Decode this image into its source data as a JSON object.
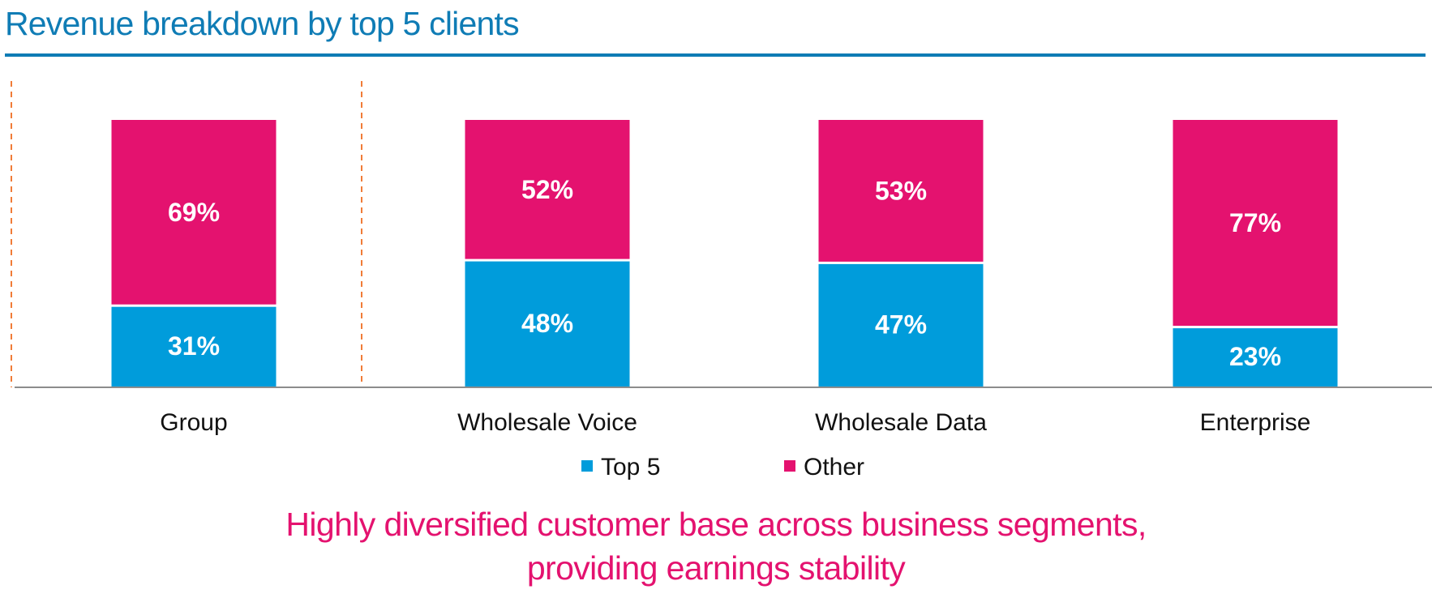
{
  "title": "Revenue breakdown by top 5 clients",
  "colors": {
    "top5": "#009cdb",
    "other": "#e4126f",
    "title": "#0f7cb5",
    "divider": "#f07c38",
    "axis": "#8c8c8c"
  },
  "chart_data": {
    "type": "bar",
    "stacked": true,
    "categories": [
      "Group",
      "Wholesale Voice",
      "Wholesale Data",
      "Enterprise"
    ],
    "series": [
      {
        "name": "Top 5",
        "values": [
          31,
          48,
          47,
          23
        ],
        "labels": [
          "31%",
          "48%",
          "47%",
          "23%"
        ],
        "color": "#009cdb"
      },
      {
        "name": "Other",
        "values": [
          69,
          52,
          53,
          77
        ],
        "labels": [
          "69%",
          "52%",
          "53%",
          "77%"
        ],
        "color": "#e4126f"
      }
    ],
    "ylim": [
      0,
      100
    ],
    "grid": false,
    "legend": "bottom-center"
  },
  "takeaway": {
    "line1": "Highly diversified customer base across business segments,",
    "line2": "providing earnings stability"
  }
}
